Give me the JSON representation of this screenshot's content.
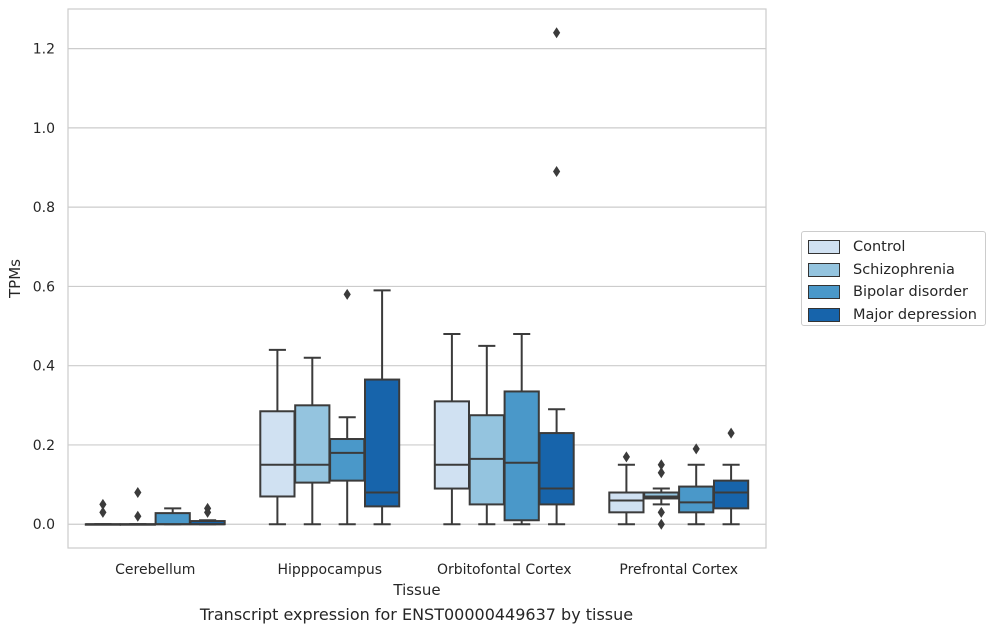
{
  "chart_data": {
    "type": "box",
    "xlabel": "Tissue",
    "ylabel": "TPMs",
    "caption": "Transcript expression for ENST00000449637 by tissue",
    "ylim": [
      -0.06,
      1.3
    ],
    "yticks": [
      "0.0",
      "0.2",
      "0.4",
      "0.6",
      "0.8",
      "1.0",
      "1.2"
    ],
    "yticks_values": [
      0.0,
      0.2,
      0.4,
      0.6,
      0.8,
      1.0,
      1.2
    ],
    "grid": "horizontal",
    "legend_position": "right",
    "categories": [
      "Cerebellum",
      "Hipppocampus",
      "Orbitofontal Cortex",
      "Prefrontal Cortex"
    ],
    "series": [
      {
        "name": "Control",
        "color": "#d0e1f2",
        "boxes": [
          {
            "min": 0.0,
            "q1": 0.0,
            "median": 0.0,
            "q3": 0.0,
            "max": 0.0,
            "outliers": [
              0.05,
              0.03
            ]
          },
          {
            "min": 0.0,
            "q1": 0.07,
            "median": 0.15,
            "q3": 0.285,
            "max": 0.44,
            "outliers": []
          },
          {
            "min": 0.0,
            "q1": 0.09,
            "median": 0.15,
            "q3": 0.31,
            "max": 0.48,
            "outliers": []
          },
          {
            "min": 0.0,
            "q1": 0.03,
            "median": 0.06,
            "q3": 0.08,
            "max": 0.15,
            "outliers": [
              0.17
            ]
          }
        ]
      },
      {
        "name": "Schizophrenia",
        "color": "#94c4df",
        "boxes": [
          {
            "min": 0.0,
            "q1": 0.0,
            "median": 0.0,
            "q3": 0.0,
            "max": 0.0,
            "outliers": [
              0.08,
              0.02
            ]
          },
          {
            "min": 0.0,
            "q1": 0.105,
            "median": 0.15,
            "q3": 0.3,
            "max": 0.42,
            "outliers": []
          },
          {
            "min": 0.0,
            "q1": 0.05,
            "median": 0.165,
            "q3": 0.275,
            "max": 0.45,
            "outliers": []
          },
          {
            "min": 0.05,
            "q1": 0.065,
            "median": 0.07,
            "q3": 0.08,
            "max": 0.09,
            "outliers": [
              0.15,
              0.13,
              0.03,
              0.0
            ]
          }
        ]
      },
      {
        "name": "Bipolar disorder",
        "color": "#4a98c9",
        "boxes": [
          {
            "min": 0.0,
            "q1": 0.0,
            "median": 0.0,
            "q3": 0.028,
            "max": 0.04,
            "outliers": []
          },
          {
            "min": 0.0,
            "q1": 0.11,
            "median": 0.18,
            "q3": 0.215,
            "max": 0.27,
            "outliers": [
              0.58
            ]
          },
          {
            "min": 0.0,
            "q1": 0.01,
            "median": 0.155,
            "q3": 0.335,
            "max": 0.48,
            "outliers": []
          },
          {
            "min": 0.0,
            "q1": 0.03,
            "median": 0.055,
            "q3": 0.095,
            "max": 0.15,
            "outliers": [
              0.19
            ]
          }
        ]
      },
      {
        "name": "Major depression",
        "color": "#1764ab",
        "boxes": [
          {
            "min": 0.0,
            "q1": 0.0,
            "median": 0.0,
            "q3": 0.008,
            "max": 0.01,
            "outliers": [
              0.04,
              0.03
            ]
          },
          {
            "min": 0.0,
            "q1": 0.045,
            "median": 0.08,
            "q3": 0.365,
            "max": 0.59,
            "outliers": []
          },
          {
            "min": 0.0,
            "q1": 0.05,
            "median": 0.09,
            "q3": 0.23,
            "max": 0.29,
            "outliers": [
              1.24,
              0.89
            ]
          },
          {
            "min": 0.0,
            "q1": 0.04,
            "median": 0.08,
            "q3": 0.11,
            "max": 0.15,
            "outliers": [
              0.23
            ]
          }
        ]
      }
    ]
  }
}
